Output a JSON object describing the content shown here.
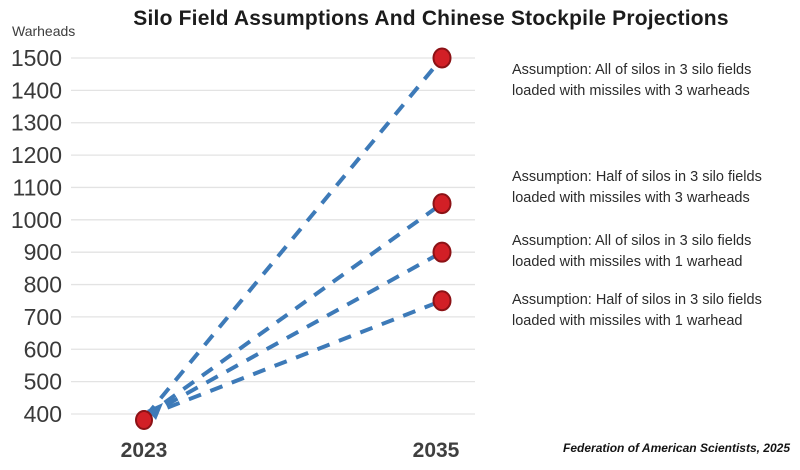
{
  "page": {
    "title": "Silo Field Assumptions And Chinese Stockpile Projections"
  },
  "axis": {
    "ylabel": "Warheads",
    "x_labels": [
      "2023",
      "2035"
    ]
  },
  "assumptions": [
    {
      "lines": [
        "Assumption: All of silos in 3 silo fields",
        "loaded with missiles with 3 warheads"
      ]
    },
    {
      "lines": [
        "Assumption: Half of silos in 3 silo fields",
        "loaded with missiles with 3 warheads"
      ]
    },
    {
      "lines": [
        "Assumption: All of silos in 3 silo fields",
        "loaded with missiles with 1 warhead"
      ]
    },
    {
      "lines": [
        "Assumption: Half of silos in 3 silo fields",
        "loaded with missiles with 1 warhead"
      ]
    }
  ],
  "source": "Federation of American Scientists, 2025",
  "chart_data": {
    "type": "line",
    "title": "Silo Field Assumptions And Chinese Stockpile Projections",
    "xlabel": "",
    "ylabel": "Warheads",
    "x": [
      "2023",
      "2035"
    ],
    "ylim": [
      400,
      1500
    ],
    "ytick_step": 100,
    "grid": true,
    "legend_position": "right-annotations",
    "line_style": "dashed",
    "series": [
      {
        "name": "Assumption: All of silos in 3 silo fields loaded with missiles with 3 warheads",
        "values": [
          400,
          1500
        ]
      },
      {
        "name": "Assumption: Half of silos in 3 silo fields loaded with missiles with 3 warheads",
        "values": [
          400,
          1050
        ]
      },
      {
        "name": "Assumption: All of silos in 3 silo fields loaded with missiles with 1 warhead",
        "values": [
          400,
          900
        ]
      },
      {
        "name": "Assumption: Half of silos in 3 silo fields loaded with missiles with 1 warhead",
        "values": [
          400,
          750
        ]
      }
    ],
    "colors": {
      "line": "#3d7ab8",
      "marker_fill": "#d21f26",
      "marker_stroke": "#8c1216",
      "gridline": "#e3e3e3",
      "tick_text": "#3a3a3a"
    }
  }
}
